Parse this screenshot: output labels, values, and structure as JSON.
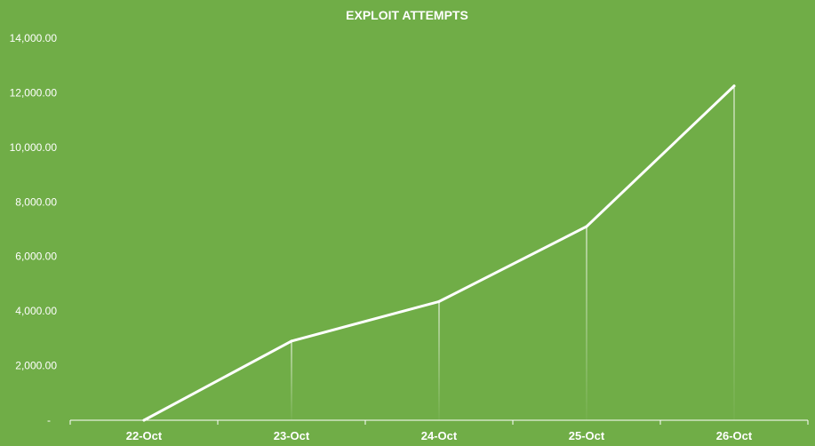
{
  "chart_data": {
    "type": "area",
    "title": "EXPLOIT ATTEMPTS",
    "xlabel": "",
    "ylabel": "",
    "categories": [
      "22-Oct",
      "23-Oct",
      "24-Oct",
      "25-Oct",
      "26-Oct"
    ],
    "series": [
      {
        "values": [
          0,
          2900,
          4350,
          7100,
          12250
        ]
      }
    ],
    "ylim": [
      0,
      14000
    ],
    "yticks": [
      0,
      2000,
      4000,
      6000,
      8000,
      10000,
      12000,
      14000
    ],
    "ytick_labels": [
      "-",
      "2,000.00",
      "4,000.00",
      "6,000.00",
      "8,000.00",
      "10,000.00",
      "12,000.00",
      "14,000.00"
    ],
    "grid": false,
    "legend": "none",
    "colors": {
      "background": "#70AD47",
      "line": "#FFFFFF",
      "text": "#FFFFFF"
    }
  }
}
